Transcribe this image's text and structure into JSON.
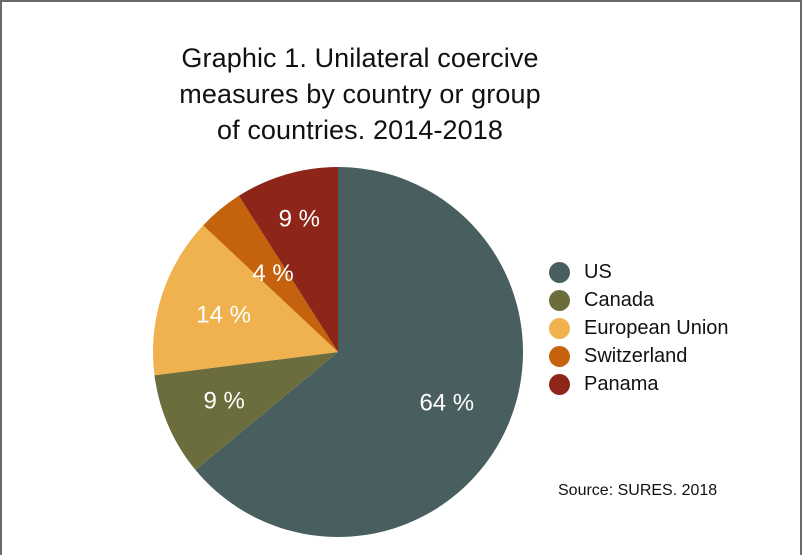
{
  "chart_data": {
    "type": "pie",
    "title_lines": [
      "Graphic 1. Unilateral coercive",
      "measures by country or group",
      "of countries. 2014-2018"
    ],
    "slices": [
      {
        "name": "US",
        "value": 64,
        "label": "64 %",
        "color": "#485e5f"
      },
      {
        "name": "Canada",
        "value": 9,
        "label": "9 %",
        "color": "#6b6d3c"
      },
      {
        "name": "European Union",
        "value": 14,
        "label": "14 %",
        "color": "#efb24f"
      },
      {
        "name": "Switzerland",
        "value": 4,
        "label": "4 %",
        "color": "#c4620d"
      },
      {
        "name": "Panama",
        "value": 9,
        "label": "9 %",
        "color": "#8d2519"
      }
    ],
    "start_angle_deg": 0,
    "direction": "clockwise",
    "legend_position": "right",
    "source": "Source: SURES. 2018"
  }
}
